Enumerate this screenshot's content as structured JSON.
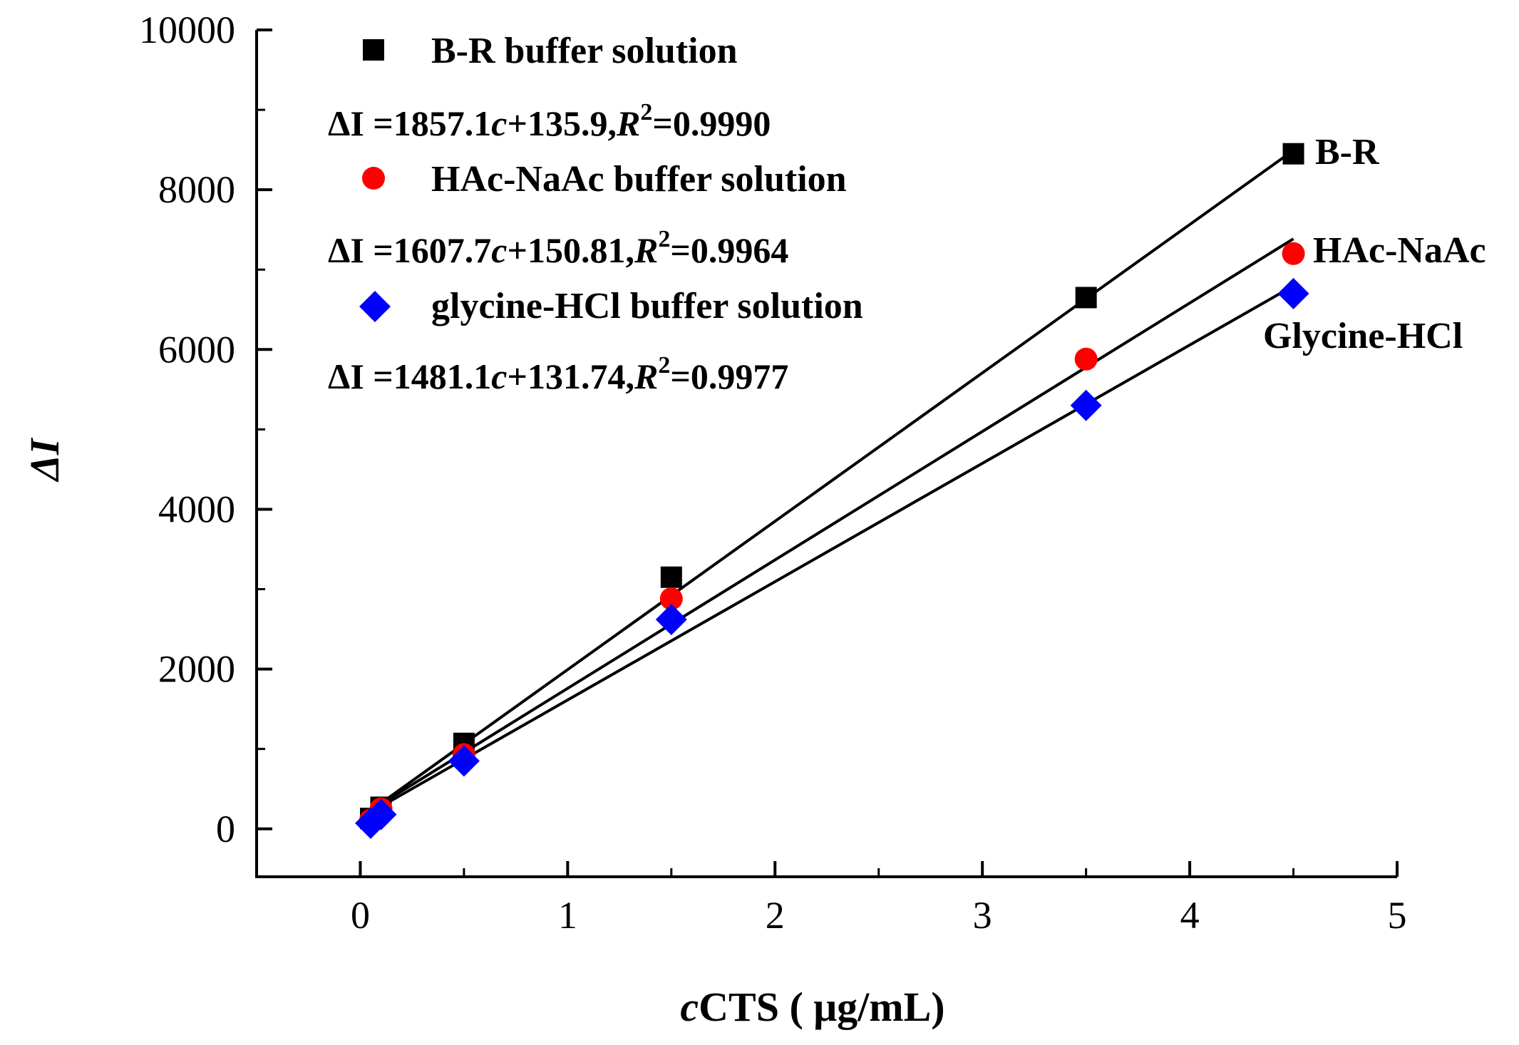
{
  "chart_data": {
    "type": "scatter",
    "xlabel_prefix": "c",
    "xlabel_rest": "CTS ( μg/mL)",
    "ylabel": "ΔI",
    "xlim": [
      -0.5,
      5
    ],
    "ylim": [
      -600,
      10000
    ],
    "x_ticks": [
      0,
      1,
      2,
      3,
      4,
      5
    ],
    "y_ticks": [
      0,
      2000,
      4000,
      6000,
      8000,
      10000
    ],
    "series": [
      {
        "name": "B-R buffer solution",
        "label": "B-R",
        "marker": "square",
        "color": "#000000",
        "x": [
          0.05,
          0.1,
          0.5,
          1.5,
          3.5,
          4.5
        ],
        "y": [
          130,
          270,
          1070,
          3150,
          6650,
          8450
        ],
        "fit_slope": 1857.1,
        "fit_intercept": 135.9,
        "eq_slope": "1857.1",
        "eq_intercept": "135.9",
        "eq_r2": "0.9990"
      },
      {
        "name": "HAc-NaAc buffer solution",
        "label": "HAc-NaAc",
        "marker": "circle",
        "color": "#ff0000",
        "x": [
          0.05,
          0.1,
          0.5,
          1.5,
          3.5,
          4.5
        ],
        "y": [
          110,
          250,
          930,
          2880,
          5880,
          7200
        ],
        "fit_slope": 1607.7,
        "fit_intercept": 150.81,
        "eq_slope": "1607.7",
        "eq_intercept": "150.81",
        "eq_r2": "0.9964"
      },
      {
        "name": "glycine-HCl buffer solution",
        "label": "Glycine-HCl",
        "marker": "diamond",
        "color": "#0000ff",
        "x": [
          0.05,
          0.1,
          0.5,
          1.5,
          3.5,
          4.5
        ],
        "y": [
          70,
          180,
          850,
          2620,
          5300,
          6700
        ],
        "fit_slope": 1481.1,
        "fit_intercept": 131.74,
        "eq_slope": "1481.1",
        "eq_intercept": "131.74",
        "eq_r2": "0.9977"
      }
    ]
  }
}
